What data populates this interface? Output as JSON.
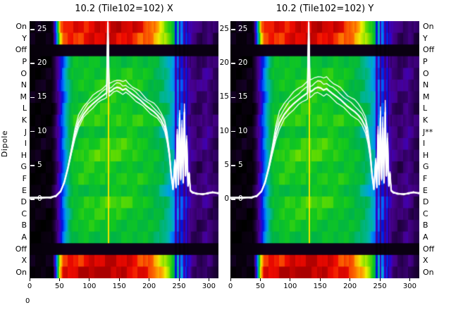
{
  "figure": {
    "background": "#ffffff",
    "y_axis_title": "Dipole",
    "stray_label": "0",
    "overlay_color": "#ffffff"
  },
  "panels": [
    {
      "id": "x",
      "title": "10.2 (Tile102=102) X"
    },
    {
      "id": "y",
      "title": "10.2 (Tile102=102) Y"
    }
  ],
  "row_labels_left": [
    "On",
    "Y",
    "Off",
    "P",
    "O",
    "N",
    "M",
    "L",
    "K",
    "J",
    "I",
    "H",
    "G",
    "F",
    "E",
    "D",
    "C",
    "B",
    "A",
    "Off",
    "X",
    "On"
  ],
  "row_labels_right": [
    "On",
    "Y",
    "Off",
    "P",
    "O",
    "N",
    "M",
    "L",
    "K",
    "J**",
    "I",
    "H",
    "G",
    "F",
    "E",
    "D",
    "C",
    "B",
    "A",
    "Off",
    "X",
    "On"
  ],
  "inner_y_tick_labels": [
    25,
    20,
    15,
    10,
    5,
    0
  ],
  "between_y_tick_labels": [
    25,
    20,
    15,
    10,
    5,
    0
  ],
  "x_tick_labels": [
    0,
    50,
    100,
    150,
    200,
    250,
    300
  ],
  "chart_data": [
    {
      "type": "heatmap",
      "title": "10.2 (Tile102=102) X",
      "xlabel": "",
      "ylabel": "Dipole",
      "x_range": [
        0,
        316
      ],
      "x_ticks": [
        0,
        50,
        100,
        150,
        200,
        250,
        300
      ],
      "rows_top_to_bottom": [
        "On",
        "Y",
        "Off",
        "P",
        "O",
        "N",
        "M",
        "L",
        "K",
        "J",
        "I",
        "H",
        "G",
        "F",
        "E",
        "D",
        "C",
        "B",
        "A",
        "Off",
        "X",
        "On"
      ],
      "row_types": [
        "hot",
        "hot",
        "off",
        "dipole",
        "dipole",
        "dipole",
        "dipole",
        "dipole",
        "dipole",
        "dipole",
        "dipole",
        "dipole",
        "dipole",
        "dipole",
        "dipole",
        "dipole",
        "dipole",
        "dipole",
        "dipole",
        "off",
        "hot",
        "hot"
      ],
      "value_ticks": [
        25,
        20,
        15,
        10,
        5,
        0
      ],
      "marker_channel": 131,
      "overlay_spread": 1.0,
      "overlay_line_x": [
        0,
        20,
        36,
        44,
        52,
        58,
        64,
        70,
        76,
        82,
        90,
        98,
        106,
        114,
        120,
        126,
        129,
        131,
        133,
        137,
        141,
        146,
        151,
        156,
        161,
        166,
        172,
        178,
        184,
        190,
        196,
        202,
        208,
        214,
        220,
        226,
        230,
        234,
        237,
        240,
        243,
        245,
        247,
        249,
        251,
        253,
        255,
        257,
        259,
        261,
        263,
        265,
        267,
        269,
        273,
        280,
        290,
        298,
        306,
        316
      ],
      "overlay_line_v": [
        0.2,
        0.25,
        0.3,
        0.5,
        1.2,
        2.5,
        4.5,
        7,
        9.5,
        11.2,
        12.5,
        13.4,
        14.1,
        14.7,
        15.1,
        15.5,
        15.7,
        26,
        15.8,
        16,
        16.3,
        16.5,
        16.4,
        16.1,
        16.3,
        15.9,
        15.5,
        15.1,
        14.7,
        14.2,
        13.7,
        13.3,
        12.9,
        12.4,
        11.7,
        10.6,
        9,
        6.5,
        3.5,
        1.5,
        5.5,
        1.8,
        9.5,
        2.2,
        12,
        3,
        10.5,
        2.5,
        12.8,
        3.5,
        8.5,
        2,
        3.8,
        1.3,
        1,
        0.85,
        0.75,
        0.9,
        1.05,
        0.9
      ]
    },
    {
      "type": "heatmap",
      "title": "10.2 (Tile102=102) Y",
      "xlabel": "",
      "ylabel": "Dipole",
      "x_range": [
        0,
        316
      ],
      "x_ticks": [
        0,
        50,
        100,
        150,
        200,
        250,
        300
      ],
      "rows_top_to_bottom": [
        "On",
        "Y",
        "Off",
        "P",
        "O",
        "N",
        "M",
        "L",
        "K",
        "J**",
        "I",
        "H",
        "G",
        "F",
        "E",
        "D",
        "C",
        "B",
        "A",
        "Off",
        "X",
        "On"
      ],
      "row_types": [
        "hot",
        "hot",
        "off",
        "dipole",
        "dipole",
        "dipole",
        "dipole",
        "dipole",
        "dipole",
        "dipole",
        "dipole",
        "dipole",
        "dipole",
        "dipole",
        "dipole",
        "dipole",
        "dipole",
        "dipole",
        "dipole",
        "off",
        "hot",
        "hot"
      ],
      "value_ticks": [
        25,
        20,
        15,
        10,
        5,
        0
      ],
      "marker_channel": 131,
      "overlay_spread": 1.45,
      "overlay_line_x": [
        0,
        20,
        36,
        44,
        52,
        58,
        64,
        70,
        76,
        82,
        90,
        98,
        106,
        114,
        120,
        126,
        129,
        131,
        133,
        137,
        141,
        146,
        151,
        156,
        161,
        166,
        172,
        178,
        184,
        190,
        196,
        202,
        208,
        214,
        220,
        226,
        230,
        234,
        237,
        240,
        243,
        245,
        247,
        249,
        251,
        253,
        255,
        257,
        259,
        261,
        263,
        265,
        267,
        269,
        273,
        280,
        290,
        298,
        306,
        316
      ],
      "overlay_line_v": [
        0.2,
        0.25,
        0.3,
        0.5,
        1.2,
        2.5,
        4.5,
        7,
        9.5,
        11.2,
        12.5,
        13.4,
        14.1,
        14.7,
        15.1,
        15.5,
        15.7,
        26,
        15.8,
        16,
        16.3,
        16.5,
        16.4,
        16.1,
        16.3,
        15.9,
        15.5,
        15.1,
        14.7,
        14.2,
        13.7,
        13.3,
        12.9,
        12.4,
        11.7,
        10.6,
        9,
        6.5,
        3.5,
        1.5,
        5.5,
        1.8,
        9.5,
        2.2,
        12,
        3,
        10.5,
        2.5,
        12.8,
        3.5,
        8.5,
        2,
        3.8,
        1.3,
        1,
        0.85,
        0.75,
        0.9,
        1.05,
        0.9
      ]
    }
  ],
  "heatmap_style": {
    "colormap": [
      [
        0.0,
        "#000000"
      ],
      [
        0.05,
        "#0d0016"
      ],
      [
        0.11,
        "#26004d"
      ],
      [
        0.17,
        "#47008c"
      ],
      [
        0.23,
        "#3a00c8"
      ],
      [
        0.3,
        "#0014dc"
      ],
      [
        0.37,
        "#0064ff"
      ],
      [
        0.44,
        "#00a0e6"
      ],
      [
        0.5,
        "#00b4a0"
      ],
      [
        0.57,
        "#00b446"
      ],
      [
        0.64,
        "#12c81e"
      ],
      [
        0.71,
        "#64dc00"
      ],
      [
        0.79,
        "#f0f000"
      ],
      [
        0.87,
        "#ff8c00"
      ],
      [
        0.94,
        "#f00a00"
      ],
      [
        1.0,
        "#aa0000"
      ]
    ],
    "profiles": {
      "hot": [
        [
          0,
          0.02
        ],
        [
          38,
          0.03
        ],
        [
          44,
          0.35
        ],
        [
          50,
          0.82
        ],
        [
          56,
          0.94
        ],
        [
          80,
          0.96
        ],
        [
          120,
          0.97
        ],
        [
          160,
          0.96
        ],
        [
          190,
          0.94
        ],
        [
          205,
          0.9
        ],
        [
          212,
          0.86
        ],
        [
          220,
          0.8
        ],
        [
          228,
          0.74
        ],
        [
          236,
          0.66
        ],
        [
          244,
          0.52
        ],
        [
          252,
          0.42
        ],
        [
          258,
          0.33
        ],
        [
          264,
          0.26
        ],
        [
          272,
          0.15
        ],
        [
          288,
          0.12
        ],
        [
          300,
          0.15
        ],
        [
          308,
          0.12
        ],
        [
          316,
          0.1
        ]
      ],
      "off": [
        [
          0,
          0.02
        ],
        [
          40,
          0.03
        ],
        [
          60,
          0.05
        ],
        [
          150,
          0.05
        ],
        [
          230,
          0.05
        ],
        [
          258,
          0.04
        ],
        [
          300,
          0.04
        ],
        [
          316,
          0.03
        ]
      ],
      "dipole": [
        [
          0,
          0.02
        ],
        [
          36,
          0.03
        ],
        [
          42,
          0.1
        ],
        [
          48,
          0.2
        ],
        [
          54,
          0.33
        ],
        [
          60,
          0.45
        ],
        [
          66,
          0.54
        ],
        [
          72,
          0.6
        ],
        [
          90,
          0.63
        ],
        [
          140,
          0.64
        ],
        [
          170,
          0.63
        ],
        [
          200,
          0.6
        ],
        [
          215,
          0.57
        ],
        [
          228,
          0.52
        ],
        [
          236,
          0.47
        ],
        [
          244,
          0.4
        ],
        [
          250,
          0.35
        ],
        [
          256,
          0.32
        ],
        [
          262,
          0.28
        ],
        [
          268,
          0.17
        ],
        [
          282,
          0.13
        ],
        [
          296,
          0.17
        ],
        [
          306,
          0.13
        ],
        [
          316,
          0.11
        ]
      ]
    },
    "row_gain": [
      1.0,
      0.98,
      1.0,
      0.96,
      1.0,
      1.03,
      0.98,
      1.02,
      1.05,
      0.97,
      1.04,
      1.06,
      1.0,
      1.02,
      0.96,
      1.05,
      1.01,
      0.98,
      0.95,
      1.0,
      0.99,
      1.02
    ],
    "stripes": [
      {
        "x": 131,
        "w": 1.2,
        "set": 0.8
      },
      {
        "x": 244,
        "w": 1.5,
        "gain": 0.55
      },
      {
        "x": 251,
        "w": 1.2,
        "gain": 0.5
      },
      {
        "x": 258,
        "w": 1.5,
        "gain": 0.6
      },
      {
        "x": 264,
        "w": 1.0,
        "gain": 0.55
      }
    ]
  }
}
